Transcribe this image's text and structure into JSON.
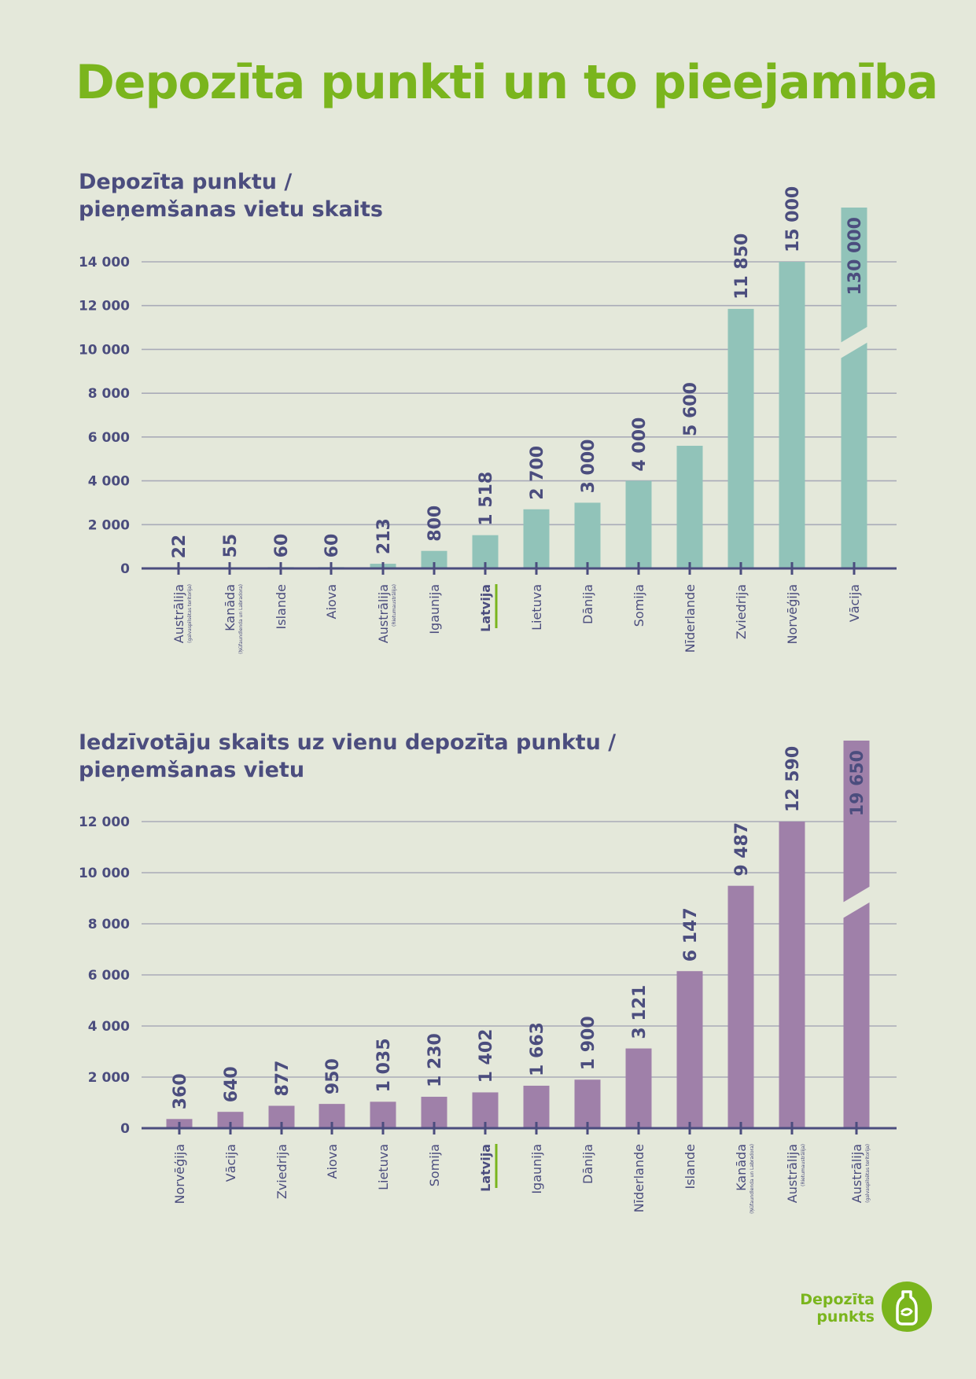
{
  "page": {
    "title": "Depozīta punkti un to pieejamība"
  },
  "chart_data": [
    {
      "type": "bar",
      "title_lines": [
        "Depozīta punktu /",
        "pieņemšanas vietu skaits"
      ],
      "ylim": [
        0,
        14000
      ],
      "yticks": [
        0,
        2000,
        4000,
        6000,
        8000,
        10000,
        12000,
        14000
      ],
      "ytick_labels": [
        "0",
        "2 000",
        "4 000",
        "6 000",
        "8 000",
        "10 000",
        "12 000",
        "14 000"
      ],
      "grid": true,
      "colors": {
        "bar": "#91c3b9",
        "axis": "#4b4d7e",
        "grid": "#a9abb8",
        "highlight": "#7ab51d"
      },
      "categories": [
        "Austrālija",
        "Kanāda",
        "Islande",
        "Aiova",
        "Austrālija",
        "Igaunija",
        "Latvija",
        "Lietuva",
        "Dānija",
        "Somija",
        "Nīderlande",
        "Zviedrija",
        "Norvēģija",
        "Vācija"
      ],
      "category_notes": [
        "(galvaspilsētas teritorija)",
        "(Ņūfaundlenda un Labradora)",
        "",
        "",
        "(Rietumaustrālija)",
        "",
        "",
        "",
        "",
        "",
        "",
        "",
        "",
        ""
      ],
      "values": [
        22,
        55,
        60,
        60,
        213,
        800,
        1518,
        2700,
        3000,
        4000,
        5600,
        11850,
        15000,
        130000
      ],
      "value_labels": [
        "22",
        "55",
        "60",
        "60",
        "213",
        "800",
        "1 518",
        "2 700",
        "3 000",
        "4 000",
        "5 600",
        "11 850",
        "15 000",
        "130 000"
      ],
      "highlight": "Latvija",
      "broken_bar": "Vācija"
    },
    {
      "type": "bar",
      "title_lines": [
        "Iedzīvotāju skaits uz vienu depozīta punktu /",
        "pieņemšanas vietu"
      ],
      "ylim": [
        0,
        12000
      ],
      "yticks": [
        0,
        2000,
        4000,
        6000,
        8000,
        10000,
        12000
      ],
      "ytick_labels": [
        "0",
        "2 000",
        "4 000",
        "6 000",
        "8 000",
        "10 000",
        "12 000"
      ],
      "grid": true,
      "colors": {
        "bar": "#9f80a9",
        "axis": "#4b4d7e",
        "grid": "#a9abb8",
        "highlight": "#7ab51d"
      },
      "categories": [
        "Norvēģija",
        "Vācija",
        "Zviedrija",
        "Aiova",
        "Lietuva",
        "Somija",
        "Latvija",
        "Igaunija",
        "Dānija",
        "Nīderlande",
        "Islande",
        "Kanāda",
        "Austrālija",
        "Austrālija"
      ],
      "category_notes": [
        "",
        "",
        "",
        "",
        "",
        "",
        "",
        "",
        "",
        "",
        "",
        "(Ņūfaundlenda un Labradora)",
        "(Rietumaustrālija)",
        "(galvaspilsētas teritorija)"
      ],
      "values": [
        360,
        640,
        877,
        950,
        1035,
        1230,
        1402,
        1663,
        1900,
        3121,
        6147,
        9487,
        12590,
        19650
      ],
      "value_labels": [
        "360",
        "640",
        "877",
        "950",
        "1 035",
        "1 230",
        "1 402",
        "1 663",
        "1 900",
        "3 121",
        "6 147",
        "9 487",
        "12 590",
        "19 650"
      ],
      "highlight": "Latvija",
      "broken_bar": "Austrālija"
    }
  ],
  "logo": {
    "line1": "Depozīta",
    "line2": "punkts",
    "icon": "bottle-icon"
  }
}
